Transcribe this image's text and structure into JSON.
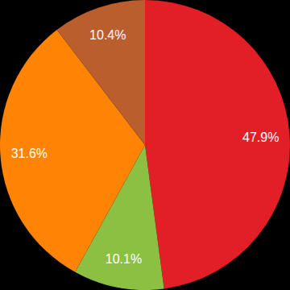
{
  "chart_data": {
    "type": "pie",
    "values": [
      47.9,
      10.1,
      31.6,
      10.4
    ],
    "value_labels": [
      "47.9%",
      "10.1%",
      "31.6%",
      "10.4%"
    ],
    "colors": [
      "#e21f26",
      "#8bc043",
      "#ff8405",
      "#bb5e2e"
    ],
    "data_labels": true
  }
}
